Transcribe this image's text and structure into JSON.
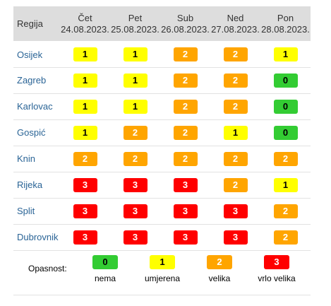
{
  "header": {
    "region_label": "Regija",
    "days": [
      {
        "name": "Čet",
        "date": "24.08.2023."
      },
      {
        "name": "Pet",
        "date": "25.08.2023."
      },
      {
        "name": "Sub",
        "date": "26.08.2023."
      },
      {
        "name": "Ned",
        "date": "27.08.2023."
      },
      {
        "name": "Pon",
        "date": "28.08.2023."
      }
    ]
  },
  "rows": [
    {
      "region": "Osijek",
      "levels": [
        "1",
        "1",
        "2",
        "2",
        "1"
      ]
    },
    {
      "region": "Zagreb",
      "levels": [
        "1",
        "1",
        "2",
        "2",
        "0"
      ]
    },
    {
      "region": "Karlovac",
      "levels": [
        "1",
        "1",
        "2",
        "2",
        "0"
      ]
    },
    {
      "region": "Gospić",
      "levels": [
        "1",
        "2",
        "2",
        "1",
        "0"
      ]
    },
    {
      "region": "Knin",
      "levels": [
        "2",
        "2",
        "2",
        "2",
        "2"
      ]
    },
    {
      "region": "Rijeka",
      "levels": [
        "3",
        "3",
        "3",
        "2",
        "1"
      ]
    },
    {
      "region": "Split",
      "levels": [
        "3",
        "3",
        "3",
        "3",
        "2"
      ]
    },
    {
      "region": "Dubrovnik",
      "levels": [
        "3",
        "3",
        "3",
        "3",
        "2"
      ]
    }
  ],
  "legend": {
    "label": "Opasnost:",
    "items": [
      {
        "value": "0",
        "caption": "nema"
      },
      {
        "value": "1",
        "caption": "umjerena"
      },
      {
        "value": "2",
        "caption": "velika"
      },
      {
        "value": "3",
        "caption": "vrlo velika"
      }
    ]
  },
  "colors": {
    "0": "#33cc33",
    "1": "#ffff00",
    "2": "#ffa500",
    "3": "#ff0000",
    "region_link": "#2a6496",
    "header_bg": "#dddddd"
  }
}
